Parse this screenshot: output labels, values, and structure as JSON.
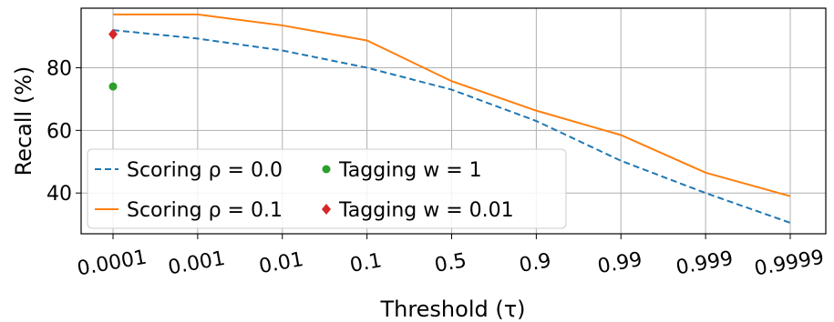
{
  "chart_data": {
    "type": "line",
    "xlabel": "Threshold (τ)",
    "ylabel": "Recall (%)",
    "categories": [
      "0.0001",
      "0.001",
      "0.01",
      "0.1",
      "0.5",
      "0.9",
      "0.99",
      "0.999",
      "0.9999"
    ],
    "ylim": [
      27,
      99
    ],
    "yticks": [
      40,
      60,
      80
    ],
    "grid": true,
    "legend_position": "bottom-left",
    "series": [
      {
        "name": "Scoring ρ = 0.0",
        "style": "dashed",
        "color": "#1f77b4",
        "values": [
          92.0,
          89.3,
          85.5,
          80.0,
          73.0,
          63.0,
          50.3,
          40.0,
          30.5
        ]
      },
      {
        "name": "Scoring ρ = 0.1",
        "style": "solid",
        "color": "#ff7f0e",
        "values": [
          97.0,
          97.0,
          93.5,
          88.7,
          75.7,
          66.3,
          58.5,
          46.5,
          39.0
        ]
      },
      {
        "name": "Tagging w = 1",
        "style": "point",
        "marker": "circle",
        "color": "#2ca02c",
        "category": "0.0001",
        "value": 74.0
      },
      {
        "name": "Tagging w = 0.01",
        "style": "point",
        "marker": "diamond",
        "color": "#d62728",
        "category": "0.0001",
        "value": 90.7
      }
    ]
  }
}
